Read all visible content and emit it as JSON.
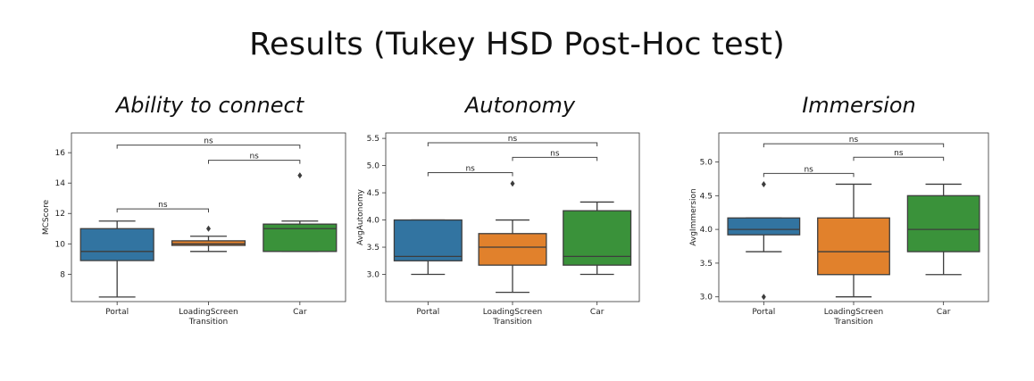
{
  "title": "Results (Tukey HSD Post-Hoc test)",
  "colors": {
    "Portal": "#3274a1",
    "LoadingScreen": "#e1812c",
    "Car": "#3a923a"
  },
  "chart_data": [
    {
      "type": "box",
      "title": "Ability to connect",
      "xlabel": "Transition",
      "ylabel": "MCScore",
      "categories": [
        "Portal",
        "LoadingScreen",
        "Car"
      ],
      "ylim": [
        6.2,
        17.3
      ],
      "yticks": [
        8,
        10,
        12,
        14,
        16
      ],
      "boxes": [
        {
          "q1": 8.9,
          "median": 9.5,
          "q3": 11.0,
          "whislo": 6.5,
          "whishi": 11.5,
          "fliers": []
        },
        {
          "q1": 9.9,
          "median": 10.0,
          "q3": 10.2,
          "whislo": 9.5,
          "whishi": 10.5,
          "fliers": [
            11.0
          ]
        },
        {
          "q1": 9.5,
          "median": 11.0,
          "q3": 11.3,
          "whislo": 9.5,
          "whishi": 11.5,
          "fliers": [
            14.5
          ]
        }
      ],
      "annotations": [
        {
          "from": 0,
          "to": 1,
          "y": 12.3,
          "label": "ns"
        },
        {
          "from": 1,
          "to": 2,
          "y": 15.5,
          "label": "ns"
        },
        {
          "from": 0,
          "to": 2,
          "y": 16.5,
          "label": "ns"
        }
      ]
    },
    {
      "type": "box",
      "title": "Autonomy",
      "xlabel": "Transition",
      "ylabel": "AvgAutonomy",
      "categories": [
        "Portal",
        "LoadingScreen",
        "Car"
      ],
      "ylim": [
        2.5,
        5.6
      ],
      "yticks": [
        3.0,
        3.5,
        4.0,
        4.5,
        5.0,
        5.5
      ],
      "tickdecimals": 1,
      "boxes": [
        {
          "q1": 3.25,
          "median": 3.33,
          "q3": 4.0,
          "whislo": 3.0,
          "whishi": 4.0,
          "fliers": []
        },
        {
          "q1": 3.17,
          "median": 3.5,
          "q3": 3.75,
          "whislo": 2.67,
          "whishi": 4.0,
          "fliers": [
            4.67
          ]
        },
        {
          "q1": 3.17,
          "median": 3.33,
          "q3": 4.17,
          "whislo": 3.0,
          "whishi": 4.33,
          "fliers": []
        }
      ],
      "annotations": [
        {
          "from": 0,
          "to": 1,
          "y": 4.87,
          "label": "ns"
        },
        {
          "from": 1,
          "to": 2,
          "y": 5.15,
          "label": "ns"
        },
        {
          "from": 0,
          "to": 2,
          "y": 5.42,
          "label": "ns"
        }
      ]
    },
    {
      "type": "box",
      "title": "Immersion",
      "xlabel": "Transition",
      "ylabel": "AvgImmersion",
      "categories": [
        "Portal",
        "LoadingScreen",
        "Car"
      ],
      "ylim": [
        2.93,
        5.43
      ],
      "yticks": [
        3.0,
        3.5,
        4.0,
        4.5,
        5.0
      ],
      "tickdecimals": 1,
      "boxes": [
        {
          "q1": 3.92,
          "median": 4.0,
          "q3": 4.17,
          "whislo": 3.67,
          "whishi": 4.17,
          "fliers": [
            4.67,
            3.0
          ]
        },
        {
          "q1": 3.33,
          "median": 3.67,
          "q3": 4.17,
          "whislo": 3.0,
          "whishi": 4.67,
          "fliers": []
        },
        {
          "q1": 3.67,
          "median": 4.0,
          "q3": 4.5,
          "whislo": 3.33,
          "whishi": 4.67,
          "fliers": []
        }
      ],
      "annotations": [
        {
          "from": 0,
          "to": 1,
          "y": 4.83,
          "label": "ns"
        },
        {
          "from": 1,
          "to": 2,
          "y": 5.07,
          "label": "ns"
        },
        {
          "from": 0,
          "to": 2,
          "y": 5.27,
          "label": "ns"
        }
      ]
    }
  ]
}
